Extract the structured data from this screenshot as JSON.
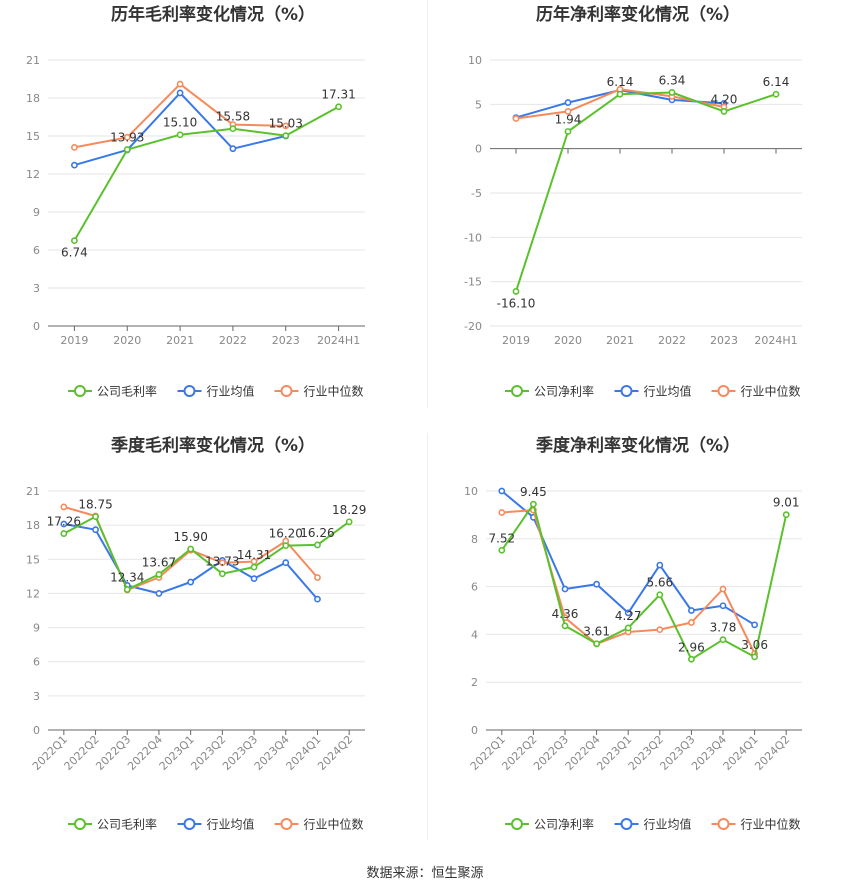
{
  "source_label": "数据来源：恒生聚源",
  "colors": {
    "company": "#5ac12c",
    "industry_avg": "#3b78e7",
    "industry_median": "#f58a5c"
  },
  "chart_data": [
    {
      "type": "line",
      "title": "历年毛利率变化情况（%）",
      "categories": [
        "2019",
        "2020",
        "2021",
        "2022",
        "2023",
        "2024H1"
      ],
      "ylim": [
        0,
        21
      ],
      "yticks": [
        0,
        3,
        6,
        9,
        12,
        15,
        18,
        21
      ],
      "grid": true,
      "legend_position": "bottom",
      "series": [
        {
          "name": "公司毛利率",
          "key": "company",
          "values": [
            6.74,
            13.93,
            15.1,
            15.58,
            15.03,
            17.31
          ],
          "labels": [
            "6.74",
            "13.93",
            "15.10",
            "15.58",
            "15.03",
            "17.31"
          ]
        },
        {
          "name": "行业均值",
          "key": "industry_avg",
          "values": [
            12.7,
            13.9,
            18.4,
            14.0,
            15.0,
            null
          ]
        },
        {
          "name": "行业中位数",
          "key": "industry_median",
          "values": [
            14.1,
            14.9,
            19.1,
            15.9,
            15.8,
            null
          ]
        }
      ]
    },
    {
      "type": "line",
      "title": "历年净利率变化情况（%）",
      "categories": [
        "2019",
        "2020",
        "2021",
        "2022",
        "2023",
        "2024H1"
      ],
      "ylim": [
        -20,
        10
      ],
      "yticks": [
        -20,
        -15,
        -10,
        -5,
        0,
        5,
        10
      ],
      "grid": true,
      "legend_position": "bottom",
      "series": [
        {
          "name": "公司净利率",
          "key": "company",
          "values": [
            -16.1,
            1.94,
            6.14,
            6.34,
            4.2,
            6.14
          ],
          "labels": [
            "-16.10",
            "1.94",
            "6.14",
            "6.34",
            "4.20",
            "6.14"
          ]
        },
        {
          "name": "行业均值",
          "key": "industry_avg",
          "values": [
            3.5,
            5.2,
            6.6,
            5.5,
            5.1,
            null
          ]
        },
        {
          "name": "行业中位数",
          "key": "industry_median",
          "values": [
            3.4,
            4.2,
            6.7,
            5.9,
            4.7,
            null
          ]
        }
      ]
    },
    {
      "type": "line",
      "title": "季度毛利率变化情况（%）",
      "categories": [
        "2022Q1",
        "2022Q2",
        "2022Q3",
        "2022Q4",
        "2023Q1",
        "2023Q2",
        "2023Q3",
        "2023Q4",
        "2024Q1",
        "2024Q2"
      ],
      "ylim": [
        0,
        21
      ],
      "yticks": [
        0,
        3,
        6,
        9,
        12,
        15,
        18,
        21
      ],
      "grid": true,
      "legend_position": "bottom",
      "series": [
        {
          "name": "公司毛利率",
          "key": "company",
          "values": [
            17.26,
            18.75,
            12.34,
            13.67,
            15.9,
            13.73,
            14.31,
            16.2,
            16.26,
            18.29
          ],
          "labels": [
            "17.26",
            "18.75",
            "12.34",
            "13.67",
            "15.90",
            "13.73",
            "14.31",
            "16.20",
            "16.26",
            "18.29"
          ]
        },
        {
          "name": "行业均值",
          "key": "industry_avg",
          "values": [
            18.1,
            17.6,
            12.7,
            12.0,
            13.0,
            14.9,
            13.3,
            14.7,
            11.5,
            null
          ]
        },
        {
          "name": "行业中位数",
          "key": "industry_median",
          "values": [
            19.6,
            18.8,
            12.3,
            13.4,
            15.8,
            14.7,
            14.8,
            16.6,
            13.4,
            null
          ]
        }
      ]
    },
    {
      "type": "line",
      "title": "季度净利率变化情况（%）",
      "categories": [
        "2022Q1",
        "2022Q2",
        "2022Q3",
        "2022Q4",
        "2023Q1",
        "2023Q2",
        "2023Q3",
        "2023Q4",
        "2024Q1",
        "2024Q2"
      ],
      "ylim": [
        0,
        10
      ],
      "yticks": [
        0,
        2,
        4,
        6,
        8,
        10
      ],
      "grid": true,
      "legend_position": "bottom",
      "series": [
        {
          "name": "公司净利率",
          "key": "company",
          "values": [
            7.52,
            9.45,
            4.36,
            3.61,
            4.27,
            5.66,
            2.96,
            3.78,
            3.06,
            9.01
          ],
          "labels": [
            "7.52",
            "9.45",
            "4.36",
            "3.61",
            "4.27",
            "5.66",
            "2.96",
            "3.78",
            "3.06",
            "9.01"
          ]
        },
        {
          "name": "行业均值",
          "key": "industry_avg",
          "values": [
            10.0,
            8.9,
            5.9,
            6.1,
            4.9,
            6.9,
            5.0,
            5.2,
            4.4,
            null
          ]
        },
        {
          "name": "行业中位数",
          "key": "industry_median",
          "values": [
            9.1,
            9.2,
            4.7,
            3.6,
            4.1,
            4.2,
            4.5,
            5.9,
            3.2,
            null
          ]
        }
      ]
    }
  ]
}
